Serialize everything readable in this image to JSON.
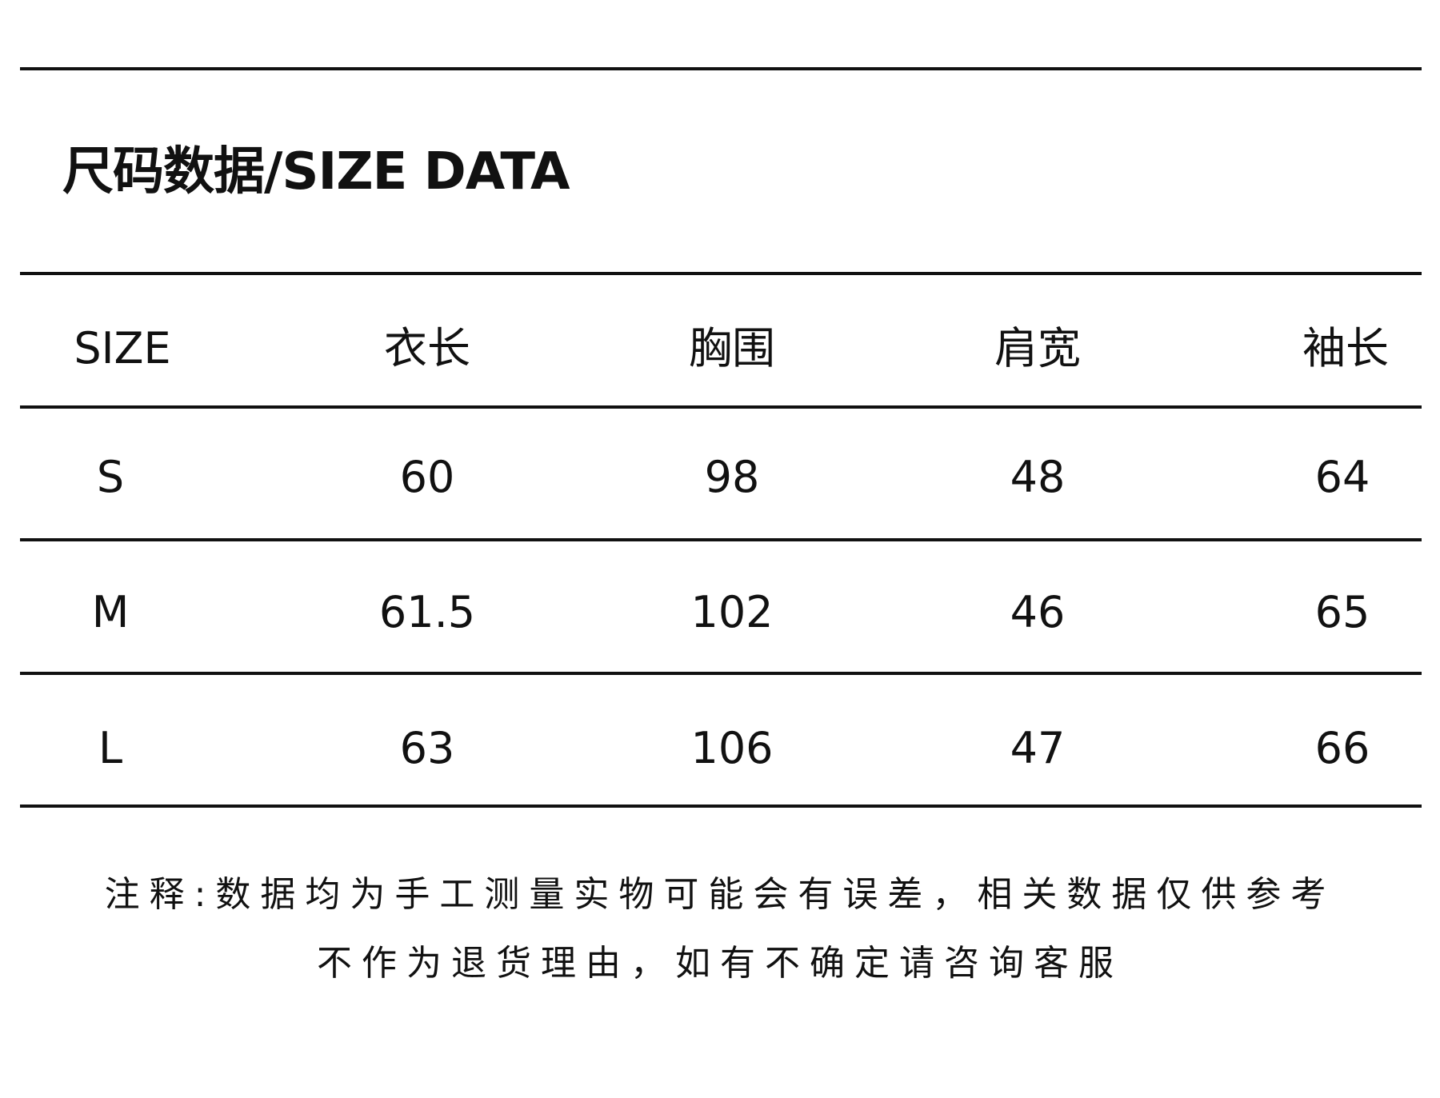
{
  "title": "尺码数据/SIZE DATA",
  "table": {
    "headers": [
      "SIZE",
      "衣长",
      "胸围",
      "肩宽",
      "袖长"
    ],
    "rows": [
      [
        "S",
        "60",
        "98",
        "48",
        "64"
      ],
      [
        "M",
        "61.5",
        "102",
        "46",
        "65"
      ],
      [
        "L",
        "63",
        "106",
        "47",
        "66"
      ]
    ]
  },
  "note": {
    "line1": "注释:数据均为手工测量实物可能会有误差，相关数据仅供参考",
    "line2": "不作为退货理由，如有不确定请咨询客服"
  }
}
